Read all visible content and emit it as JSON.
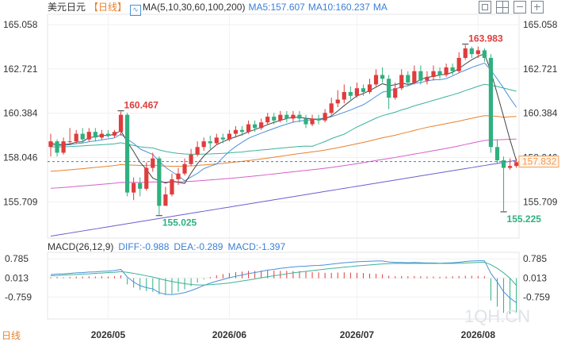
{
  "header": {
    "title": "美元日元",
    "period": "【日线】",
    "ma_label": "MA(5,10,30,60,100,200)",
    "ma5": "MA5:157.607",
    "ma10": "MA10:160.237",
    "ma_more": "MA"
  },
  "macd_header": {
    "label": "MACD(26,12,9)",
    "diff": "DIFF:-0.988",
    "dea": "DEA:-0.289",
    "macd": "MACD:-1.397"
  },
  "bottom_tag": "日线",
  "watermark": "1QH.CN",
  "colors": {
    "up": "#e03c3c",
    "down": "#2fb07f",
    "ma5": "#444444",
    "ma10": "#4a90d9",
    "ma30": "#3cb39a",
    "ma60": "#e8822c",
    "ma100": "#d65fc9",
    "ma200": "#6a5fd0",
    "label_blue": "#3a7fd5",
    "current_price_box": "#f39a4b"
  },
  "chart_data": {
    "type": "candlestick",
    "price_axis_ticks": [
      "165.058",
      "162.721",
      "160.384",
      "158.046",
      "155.709"
    ],
    "macd_axis_ticks": [
      "0.785",
      "0.013",
      "-0.759"
    ],
    "x_labels": [
      "2026/05",
      "2026/06",
      "2026/07",
      "2026/08"
    ],
    "current_price": "157.832",
    "current_price_value": 157.832,
    "price_range": [
      153.8,
      165.6
    ],
    "macd_range": [
      -1.65,
      1.05
    ],
    "annotations": [
      {
        "text": "160.467",
        "value": 160.467,
        "type": "high"
      },
      {
        "text": "155.025",
        "value": 155.025,
        "type": "low"
      },
      {
        "text": "163.983",
        "value": 163.983,
        "type": "high"
      },
      {
        "text": "155.225",
        "value": 155.225,
        "type": "low"
      }
    ],
    "candles": [
      [
        158.6,
        158.9,
        158.1,
        159.3
      ],
      [
        158.9,
        158.3,
        158.1,
        159.0
      ],
      [
        158.3,
        158.9,
        158.2,
        159.1
      ],
      [
        158.9,
        158.9,
        158.7,
        159.6
      ],
      [
        158.9,
        159.3,
        158.8,
        159.5
      ],
      [
        159.3,
        159.0,
        158.8,
        159.6
      ],
      [
        159.0,
        159.4,
        158.9,
        159.6
      ],
      [
        159.4,
        159.1,
        158.9,
        159.6
      ],
      [
        159.1,
        159.3,
        159.0,
        159.5
      ],
      [
        159.3,
        159.2,
        159.1,
        159.5
      ],
      [
        159.2,
        159.4,
        159.1,
        159.5
      ],
      [
        159.4,
        160.3,
        159.2,
        160.47
      ],
      [
        160.3,
        156.2,
        156.0,
        160.4
      ],
      [
        156.2,
        156.7,
        155.8,
        157.0
      ],
      [
        156.7,
        156.4,
        156.0,
        157.0
      ],
      [
        156.4,
        157.5,
        156.3,
        157.8
      ],
      [
        157.5,
        158.0,
        157.3,
        158.3
      ],
      [
        158.0,
        155.5,
        155.025,
        158.1
      ],
      [
        155.5,
        156.1,
        155.5,
        156.5
      ],
      [
        156.1,
        156.9,
        156.0,
        157.2
      ],
      [
        156.9,
        157.2,
        156.6,
        157.5
      ],
      [
        157.2,
        157.7,
        157.1,
        158.0
      ],
      [
        157.7,
        158.2,
        157.6,
        158.5
      ],
      [
        158.2,
        158.6,
        158.1,
        158.9
      ],
      [
        158.6,
        158.9,
        158.4,
        159.1
      ],
      [
        158.9,
        158.8,
        158.5,
        159.2
      ],
      [
        158.8,
        159.1,
        158.7,
        159.3
      ],
      [
        159.1,
        159.0,
        158.8,
        159.3
      ],
      [
        159.0,
        159.3,
        158.9,
        159.5
      ],
      [
        159.3,
        159.5,
        159.1,
        159.7
      ],
      [
        159.5,
        159.4,
        159.2,
        159.7
      ],
      [
        159.4,
        159.8,
        159.3,
        160.0
      ],
      [
        159.8,
        159.6,
        159.4,
        160.0
      ],
      [
        159.6,
        159.9,
        159.5,
        160.1
      ],
      [
        159.9,
        160.2,
        159.8,
        160.4
      ],
      [
        160.2,
        160.0,
        159.8,
        160.4
      ],
      [
        160.0,
        160.3,
        159.9,
        160.5
      ],
      [
        160.3,
        160.1,
        159.9,
        160.5
      ],
      [
        160.1,
        160.3,
        159.9,
        160.5
      ],
      [
        160.3,
        160.1,
        159.9,
        160.5
      ],
      [
        160.1,
        159.8,
        159.6,
        160.3
      ],
      [
        159.8,
        160.1,
        159.7,
        160.3
      ],
      [
        160.1,
        160.0,
        159.8,
        160.3
      ],
      [
        160.0,
        160.4,
        159.9,
        160.6
      ],
      [
        160.4,
        160.9,
        160.3,
        161.2
      ],
      [
        160.9,
        161.1,
        160.7,
        161.6
      ],
      [
        161.1,
        161.5,
        160.9,
        161.9
      ],
      [
        161.5,
        161.3,
        161.1,
        161.8
      ],
      [
        161.3,
        161.7,
        161.2,
        162.0
      ],
      [
        161.7,
        161.5,
        161.3,
        161.9
      ],
      [
        161.5,
        161.9,
        161.4,
        162.2
      ],
      [
        161.9,
        162.4,
        161.8,
        162.7
      ],
      [
        162.4,
        162.2,
        162.0,
        162.8
      ],
      [
        162.2,
        161.2,
        160.6,
        162.4
      ],
      [
        161.2,
        161.7,
        161.1,
        162.0
      ],
      [
        161.7,
        162.4,
        161.6,
        162.7
      ],
      [
        162.4,
        162.0,
        161.8,
        162.6
      ],
      [
        162.0,
        162.6,
        161.9,
        162.9
      ],
      [
        162.6,
        162.1,
        161.9,
        162.9
      ],
      [
        162.1,
        162.3,
        161.9,
        162.6
      ],
      [
        162.3,
        162.6,
        162.1,
        162.9
      ],
      [
        162.6,
        162.4,
        162.2,
        162.8
      ],
      [
        162.4,
        162.8,
        162.3,
        163.0
      ],
      [
        162.8,
        162.6,
        162.4,
        163.0
      ],
      [
        162.6,
        163.3,
        162.5,
        163.6
      ],
      [
        163.3,
        163.8,
        163.2,
        163.983
      ],
      [
        163.8,
        163.5,
        163.3,
        163.9
      ],
      [
        163.5,
        163.7,
        163.3,
        163.9
      ],
      [
        163.7,
        163.3,
        163.1,
        163.8
      ],
      [
        163.3,
        158.6,
        158.3,
        163.5
      ],
      [
        158.6,
        157.9,
        157.7,
        159.0
      ],
      [
        157.9,
        157.5,
        155.225,
        158.1
      ],
      [
        157.5,
        157.6,
        157.4,
        158.0
      ],
      [
        157.6,
        157.8,
        157.5,
        158.0
      ]
    ],
    "macd_hist": [
      0.04,
      0.05,
      0.04,
      0.06,
      0.07,
      0.07,
      0.08,
      0.07,
      0.08,
      0.07,
      0.08,
      0.12,
      -0.25,
      -0.38,
      -0.48,
      -0.52,
      -0.55,
      -0.65,
      -0.68,
      -0.63,
      -0.55,
      -0.45,
      -0.32,
      -0.18,
      -0.05,
      0.05,
      0.12,
      0.17,
      0.21,
      0.25,
      0.27,
      0.3,
      0.3,
      0.31,
      0.32,
      0.31,
      0.3,
      0.3,
      0.29,
      0.29,
      0.27,
      0.25,
      0.24,
      0.22,
      0.22,
      0.23,
      0.24,
      0.23,
      0.22,
      0.21,
      0.19,
      0.18,
      0.16,
      0.1,
      0.08,
      0.09,
      0.08,
      0.09,
      0.08,
      0.07,
      0.07,
      0.06,
      0.07,
      0.08,
      0.09,
      0.1,
      0.1,
      0.09,
      0.08,
      -0.9,
      -1.15,
      -1.4,
      -1.45,
      -1.4
    ],
    "macd_diff": [
      0.15,
      0.17,
      0.18,
      0.2,
      0.22,
      0.23,
      0.25,
      0.26,
      0.28,
      0.29,
      0.31,
      0.36,
      0.05,
      -0.15,
      -0.3,
      -0.38,
      -0.43,
      -0.58,
      -0.65,
      -0.66,
      -0.63,
      -0.58,
      -0.5,
      -0.4,
      -0.29,
      -0.2,
      -0.12,
      -0.05,
      0.02,
      0.08,
      0.13,
      0.19,
      0.23,
      0.28,
      0.33,
      0.36,
      0.4,
      0.43,
      0.46,
      0.48,
      0.49,
      0.51,
      0.52,
      0.54,
      0.57,
      0.6,
      0.63,
      0.65,
      0.67,
      0.68,
      0.69,
      0.7,
      0.7,
      0.66,
      0.64,
      0.64,
      0.63,
      0.64,
      0.63,
      0.62,
      0.62,
      0.61,
      0.62,
      0.63,
      0.65,
      0.68,
      0.7,
      0.71,
      0.71,
      0.2,
      -0.15,
      -0.55,
      -0.8,
      -0.99
    ],
    "macd_dea": [
      0.1,
      0.11,
      0.13,
      0.14,
      0.15,
      0.17,
      0.18,
      0.2,
      0.21,
      0.23,
      0.24,
      0.27,
      0.24,
      0.2,
      0.15,
      0.1,
      0.05,
      -0.02,
      -0.08,
      -0.13,
      -0.18,
      -0.22,
      -0.25,
      -0.27,
      -0.27,
      -0.26,
      -0.24,
      -0.22,
      -0.19,
      -0.15,
      -0.11,
      -0.07,
      -0.03,
      0.02,
      0.06,
      0.1,
      0.14,
      0.18,
      0.22,
      0.25,
      0.28,
      0.31,
      0.34,
      0.37,
      0.4,
      0.42,
      0.45,
      0.47,
      0.5,
      0.52,
      0.54,
      0.56,
      0.58,
      0.59,
      0.6,
      0.6,
      0.6,
      0.6,
      0.6,
      0.6,
      0.6,
      0.6,
      0.6,
      0.6,
      0.61,
      0.62,
      0.63,
      0.64,
      0.65,
      0.55,
      0.4,
      0.22,
      0.0,
      -0.29
    ]
  }
}
